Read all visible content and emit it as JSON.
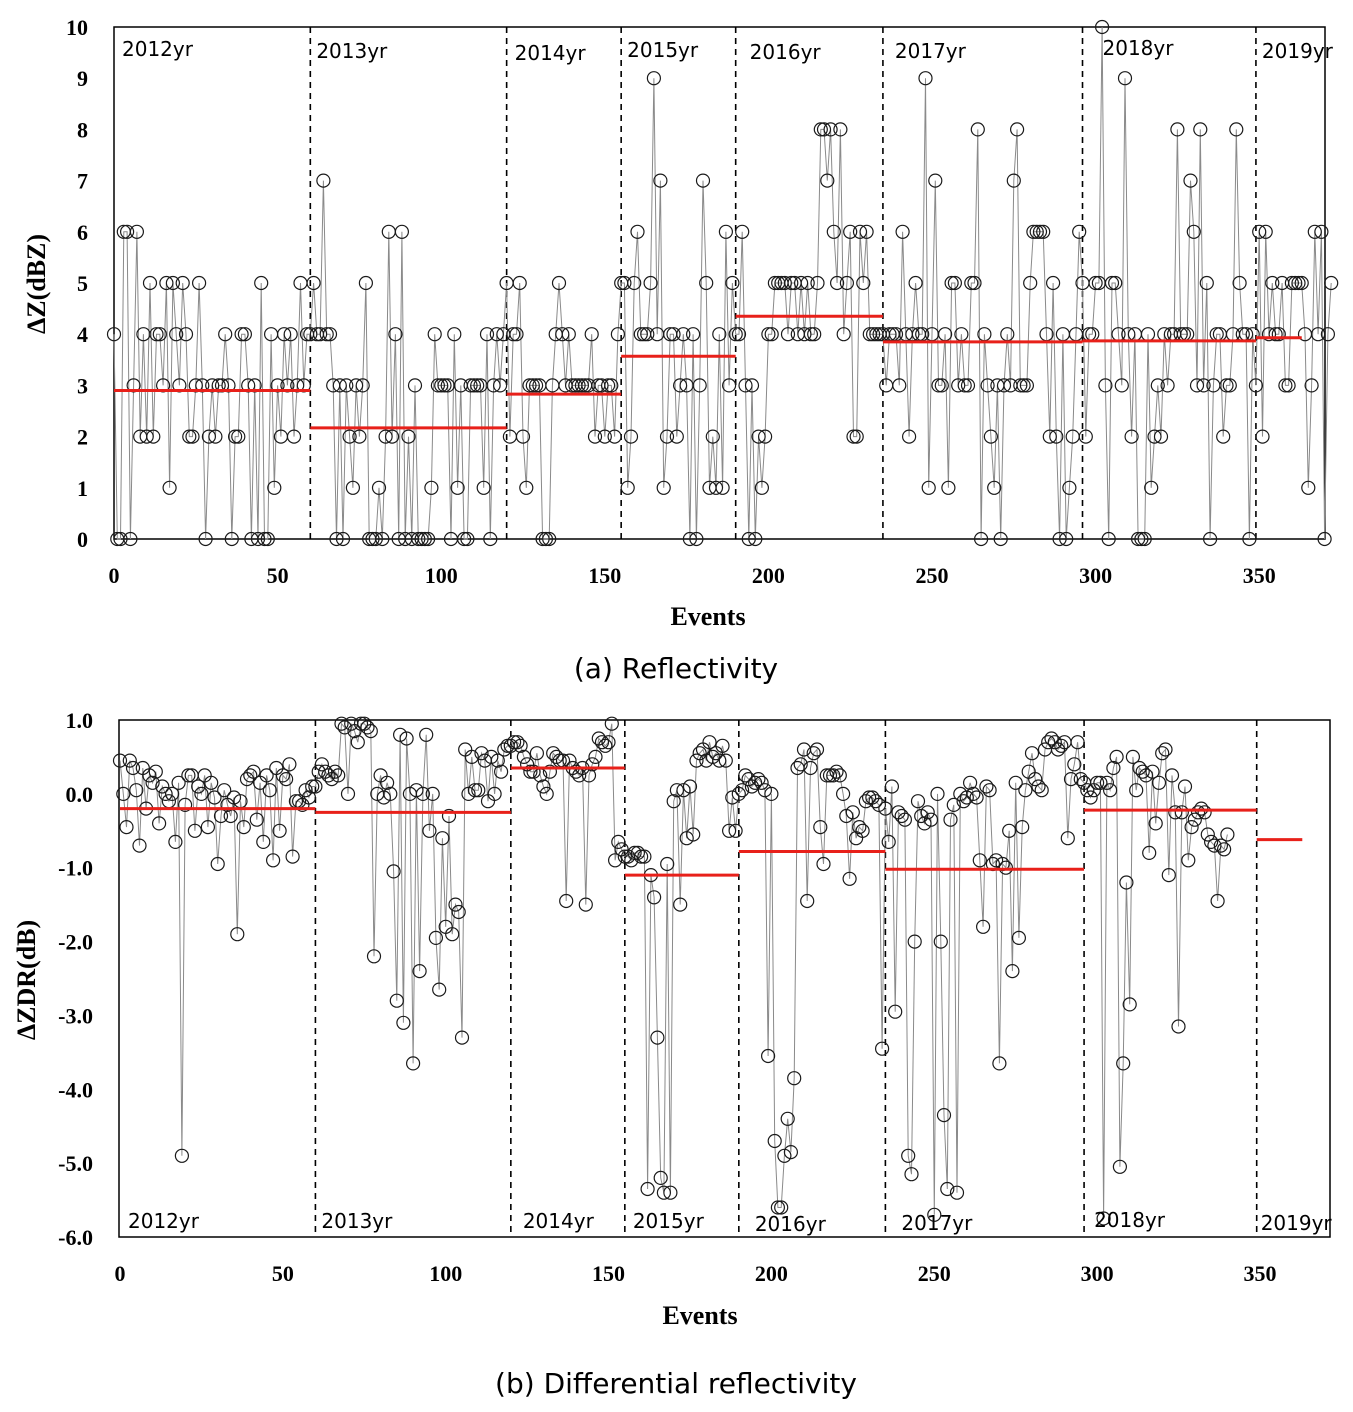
{
  "chart_data": [
    {
      "type": "scatter",
      "caption": "(a) Reflectivity",
      "xlabel": "Events",
      "ylabel": "ΔZ(dBZ)",
      "xlim": [
        0,
        370
      ],
      "ylim": [
        0,
        10
      ],
      "xticks": [
        0,
        50,
        100,
        150,
        200,
        250,
        300,
        350
      ],
      "yticks": [
        0,
        1,
        2,
        3,
        4,
        5,
        6,
        7,
        8,
        9,
        10
      ],
      "year_labels": [
        "2012yr",
        "2013yr",
        "2014yr",
        "2015yr",
        "2016yr",
        "2017yr",
        "2018yr",
        "2019yr"
      ],
      "year_bounds": [
        0,
        60,
        120,
        155,
        190,
        235,
        296,
        349,
        363
      ],
      "boundaries": [
        60,
        120,
        155,
        190,
        235,
        296,
        349
      ],
      "yearly_means": [
        2.9,
        2.17,
        2.83,
        3.57,
        4.35,
        3.85,
        3.87,
        3.93
      ],
      "series": [
        {
          "name": "ΔZ",
          "values": [
            4,
            0,
            0,
            6,
            6,
            0,
            3,
            6,
            2,
            4,
            2,
            5,
            2,
            4,
            4,
            3,
            5,
            1,
            5,
            4,
            3,
            5,
            4,
            2,
            2,
            3,
            5,
            3,
            0,
            2,
            3,
            2,
            3,
            3,
            4,
            3,
            0,
            2,
            2,
            4,
            4,
            3,
            0,
            3,
            0,
            5,
            0,
            0,
            4,
            1,
            3,
            2,
            4,
            3,
            4,
            2,
            3,
            5,
            3,
            4,
            4,
            5,
            4,
            4,
            7,
            4,
            4,
            3,
            0,
            3,
            0,
            3,
            2,
            1,
            3,
            2,
            3,
            5,
            0,
            0,
            0,
            1,
            0,
            2,
            6,
            2,
            4,
            0,
            6,
            0,
            2,
            0,
            3,
            0,
            0,
            0,
            0,
            1,
            4,
            3,
            3,
            3,
            3,
            0,
            4,
            1,
            3,
            0,
            0,
            3,
            3,
            3,
            3,
            1,
            4,
            0,
            3,
            4,
            3,
            4,
            5,
            2,
            4,
            4,
            5,
            2,
            1,
            3,
            3,
            3,
            3,
            0,
            0,
            0,
            3,
            4,
            5,
            4,
            3,
            4,
            3,
            3,
            3,
            3,
            3,
            3,
            4,
            2,
            3,
            3,
            2,
            3,
            3,
            2,
            4,
            5,
            5,
            1,
            2,
            5,
            6,
            4,
            4,
            4,
            5,
            9,
            4,
            7,
            1,
            2,
            4,
            4,
            2,
            3,
            4,
            3,
            0,
            4,
            0,
            3,
            7,
            5,
            1,
            2,
            1,
            4,
            1,
            6,
            3,
            5,
            4,
            4,
            6,
            3,
            0,
            3,
            0,
            2,
            1,
            2,
            4,
            4,
            5,
            5,
            5,
            5,
            4,
            5,
            5,
            4,
            5,
            4,
            5,
            4,
            4,
            5,
            8,
            8,
            7,
            8,
            6,
            5,
            8,
            4,
            5,
            6,
            2,
            2,
            6,
            5,
            6,
            4,
            4,
            4,
            4,
            4,
            3,
            4,
            4,
            4,
            3,
            6,
            4,
            2,
            4,
            5,
            4,
            4,
            9,
            1,
            4,
            7,
            3,
            3,
            4,
            1,
            5,
            5,
            3,
            4,
            3,
            3,
            5,
            5,
            8,
            0,
            4,
            3,
            2,
            1,
            3,
            0,
            3,
            4,
            3,
            7,
            8,
            3,
            3,
            3,
            5,
            6,
            6,
            6,
            6,
            4,
            2,
            5,
            2,
            0,
            4,
            0,
            1,
            2,
            4,
            6,
            5,
            2,
            4,
            4,
            5,
            5,
            10,
            3,
            0,
            5,
            5,
            4,
            3,
            9,
            4,
            2,
            4,
            0,
            0,
            0,
            4,
            1,
            2,
            3,
            2,
            4,
            3,
            4,
            4,
            8,
            4,
            4,
            4,
            7,
            6,
            3,
            8,
            3,
            5,
            0,
            3,
            4,
            4,
            2,
            3,
            3,
            4,
            8,
            5,
            4,
            4,
            0,
            4,
            3,
            6,
            2,
            6,
            4,
            5,
            4,
            4,
            5,
            3,
            3,
            5,
            5,
            5,
            5,
            4,
            1,
            3,
            6,
            4,
            6,
            0,
            4,
            5
          ]
        }
      ]
    },
    {
      "type": "scatter",
      "caption": "(b) Differential reflectivity",
      "xlabel": "Events",
      "ylabel": "ΔZDR(dB)",
      "xlim": [
        0,
        370
      ],
      "ylim": [
        -6,
        1
      ],
      "xticks": [
        0,
        50,
        100,
        150,
        200,
        250,
        300,
        350
      ],
      "yticks": [
        -6,
        -5,
        -4,
        -3,
        -2,
        -1,
        0,
        1
      ],
      "year_labels": [
        "2012yr",
        "2013yr",
        "2014yr",
        "2015yr",
        "2016yr",
        "2017yr",
        "2018yr",
        "2019yr"
      ],
      "year_bounds": [
        0,
        60,
        120,
        155,
        190,
        235,
        296,
        349,
        363
      ],
      "boundaries": [
        60,
        120,
        155,
        190,
        235,
        296,
        349
      ],
      "yearly_means": [
        -0.2,
        -0.25,
        0.35,
        -1.1,
        -0.78,
        -1.02,
        -0.22,
        -0.62
      ],
      "series": [
        {
          "name": "ΔZDR",
          "values": [
            0.45,
            0.0,
            -0.45,
            0.45,
            0.35,
            0.05,
            -0.7,
            0.35,
            -0.2,
            0.25,
            0.15,
            0.3,
            -0.4,
            0.1,
            0.0,
            -0.1,
            0.0,
            -0.65,
            0.15,
            -4.9,
            -0.15,
            0.25,
            0.25,
            -0.5,
            0.1,
            0.0,
            0.25,
            -0.45,
            0.15,
            -0.05,
            -0.95,
            -0.3,
            0.05,
            -0.15,
            -0.3,
            -0.05,
            -1.9,
            -0.1,
            -0.45,
            0.2,
            0.25,
            0.3,
            -0.35,
            0.15,
            -0.65,
            0.25,
            0.05,
            -0.9,
            0.35,
            -0.5,
            0.25,
            0.2,
            0.4,
            -0.85,
            -0.1,
            -0.1,
            -0.15,
            0.05,
            -0.05,
            0.1,
            0.1,
            0.3,
            0.4,
            0.3,
            0.25,
            0.2,
            0.3,
            0.25,
            0.95,
            0.9,
            0.0,
            0.95,
            0.85,
            0.7,
            0.95,
            0.95,
            0.9,
            0.85,
            -2.2,
            0.0,
            0.25,
            -0.05,
            0.15,
            0.0,
            -1.05,
            -2.8,
            0.8,
            -3.1,
            0.75,
            0.0,
            -3.65,
            0.05,
            -2.4,
            0.0,
            0.8,
            -0.5,
            0.0,
            -1.95,
            -2.65,
            -0.6,
            -1.8,
            -0.3,
            -1.9,
            -1.5,
            -1.6,
            -3.3,
            0.6,
            0.0,
            0.5,
            0.05,
            0.05,
            0.55,
            0.45,
            -0.1,
            0.5,
            0.0,
            0.45,
            0.3,
            0.6,
            0.65,
            0.65,
            0.7,
            0.7,
            0.65,
            0.5,
            0.4,
            0.3,
            0.3,
            0.55,
            0.25,
            0.1,
            0.0,
            0.3,
            0.55,
            0.5,
            0.45,
            0.45,
            -1.45,
            0.45,
            0.35,
            0.3,
            0.25,
            0.35,
            -1.5,
            0.25,
            0.4,
            0.5,
            0.75,
            0.7,
            0.65,
            0.7,
            0.95,
            -0.9,
            -0.65,
            -0.75,
            -0.85,
            -0.85,
            -0.9,
            -0.8,
            -0.8,
            -0.85,
            -0.85,
            -5.35,
            -1.1,
            -1.4,
            -3.3,
            -5.2,
            -5.4,
            -0.95,
            -5.4,
            -0.1,
            0.05,
            -1.5,
            0.05,
            -0.6,
            0.1,
            -0.55,
            0.45,
            0.55,
            0.6,
            0.45,
            0.7,
            0.5,
            0.55,
            0.45,
            0.65,
            0.45,
            -0.5,
            -0.05,
            -0.5,
            0.0,
            0.05,
            0.25,
            0.2,
            0.1,
            0.15,
            0.2,
            0.15,
            0.05,
            -3.55,
            0.0,
            -4.7,
            -5.6,
            -5.6,
            -4.9,
            -4.4,
            -4.85,
            -3.85,
            0.35,
            0.4,
            0.6,
            -1.45,
            0.35,
            0.55,
            0.6,
            -0.45,
            -0.95,
            0.25,
            0.25,
            0.25,
            0.3,
            0.25,
            0.0,
            -0.3,
            -1.15,
            -0.25,
            -0.6,
            -0.45,
            -0.5,
            -0.1,
            -0.05,
            -0.05,
            -0.1,
            -0.15,
            -3.45,
            -0.2,
            -0.65,
            0.1,
            -2.95,
            -0.25,
            -0.3,
            -0.35,
            -4.9,
            -5.15,
            -2.0,
            -0.1,
            -0.3,
            -0.4,
            -0.25,
            -0.35,
            -5.7,
            0.0,
            -2.0,
            -4.35,
            -5.35,
            -0.35,
            -0.15,
            -5.4,
            0.0,
            -0.1,
            -0.05,
            0.15,
            0.0,
            -0.05,
            -0.9,
            -1.8,
            0.1,
            0.05,
            -0.95,
            -0.9,
            -3.65,
            -0.95,
            -1.0,
            -0.5,
            -2.4,
            0.15,
            -1.95,
            -0.45,
            0.05,
            0.3,
            0.55,
            0.2,
            0.1,
            0.05,
            0.6,
            0.7,
            0.75,
            0.7,
            0.6,
            0.65,
            0.7,
            -0.6,
            0.2,
            0.4,
            0.7,
            0.2,
            0.15,
            0.05,
            -0.05,
            0.05,
            0.15,
            0.15,
            -5.75,
            0.15,
            0.05,
            0.35,
            0.5,
            -5.05,
            -3.65,
            -1.2,
            -2.85,
            0.5,
            0.05,
            0.35,
            0.3,
            0.25,
            -0.8,
            0.3,
            -0.4,
            0.15,
            0.55,
            0.6,
            -1.1,
            0.25,
            -0.25,
            -3.15,
            -0.25,
            0.1,
            -0.9,
            -0.45,
            -0.35,
            -0.25,
            -0.2,
            -0.25,
            -0.55,
            -0.65,
            -0.7,
            -1.45,
            -0.7,
            -0.75,
            -0.55
          ]
        }
      ]
    }
  ]
}
